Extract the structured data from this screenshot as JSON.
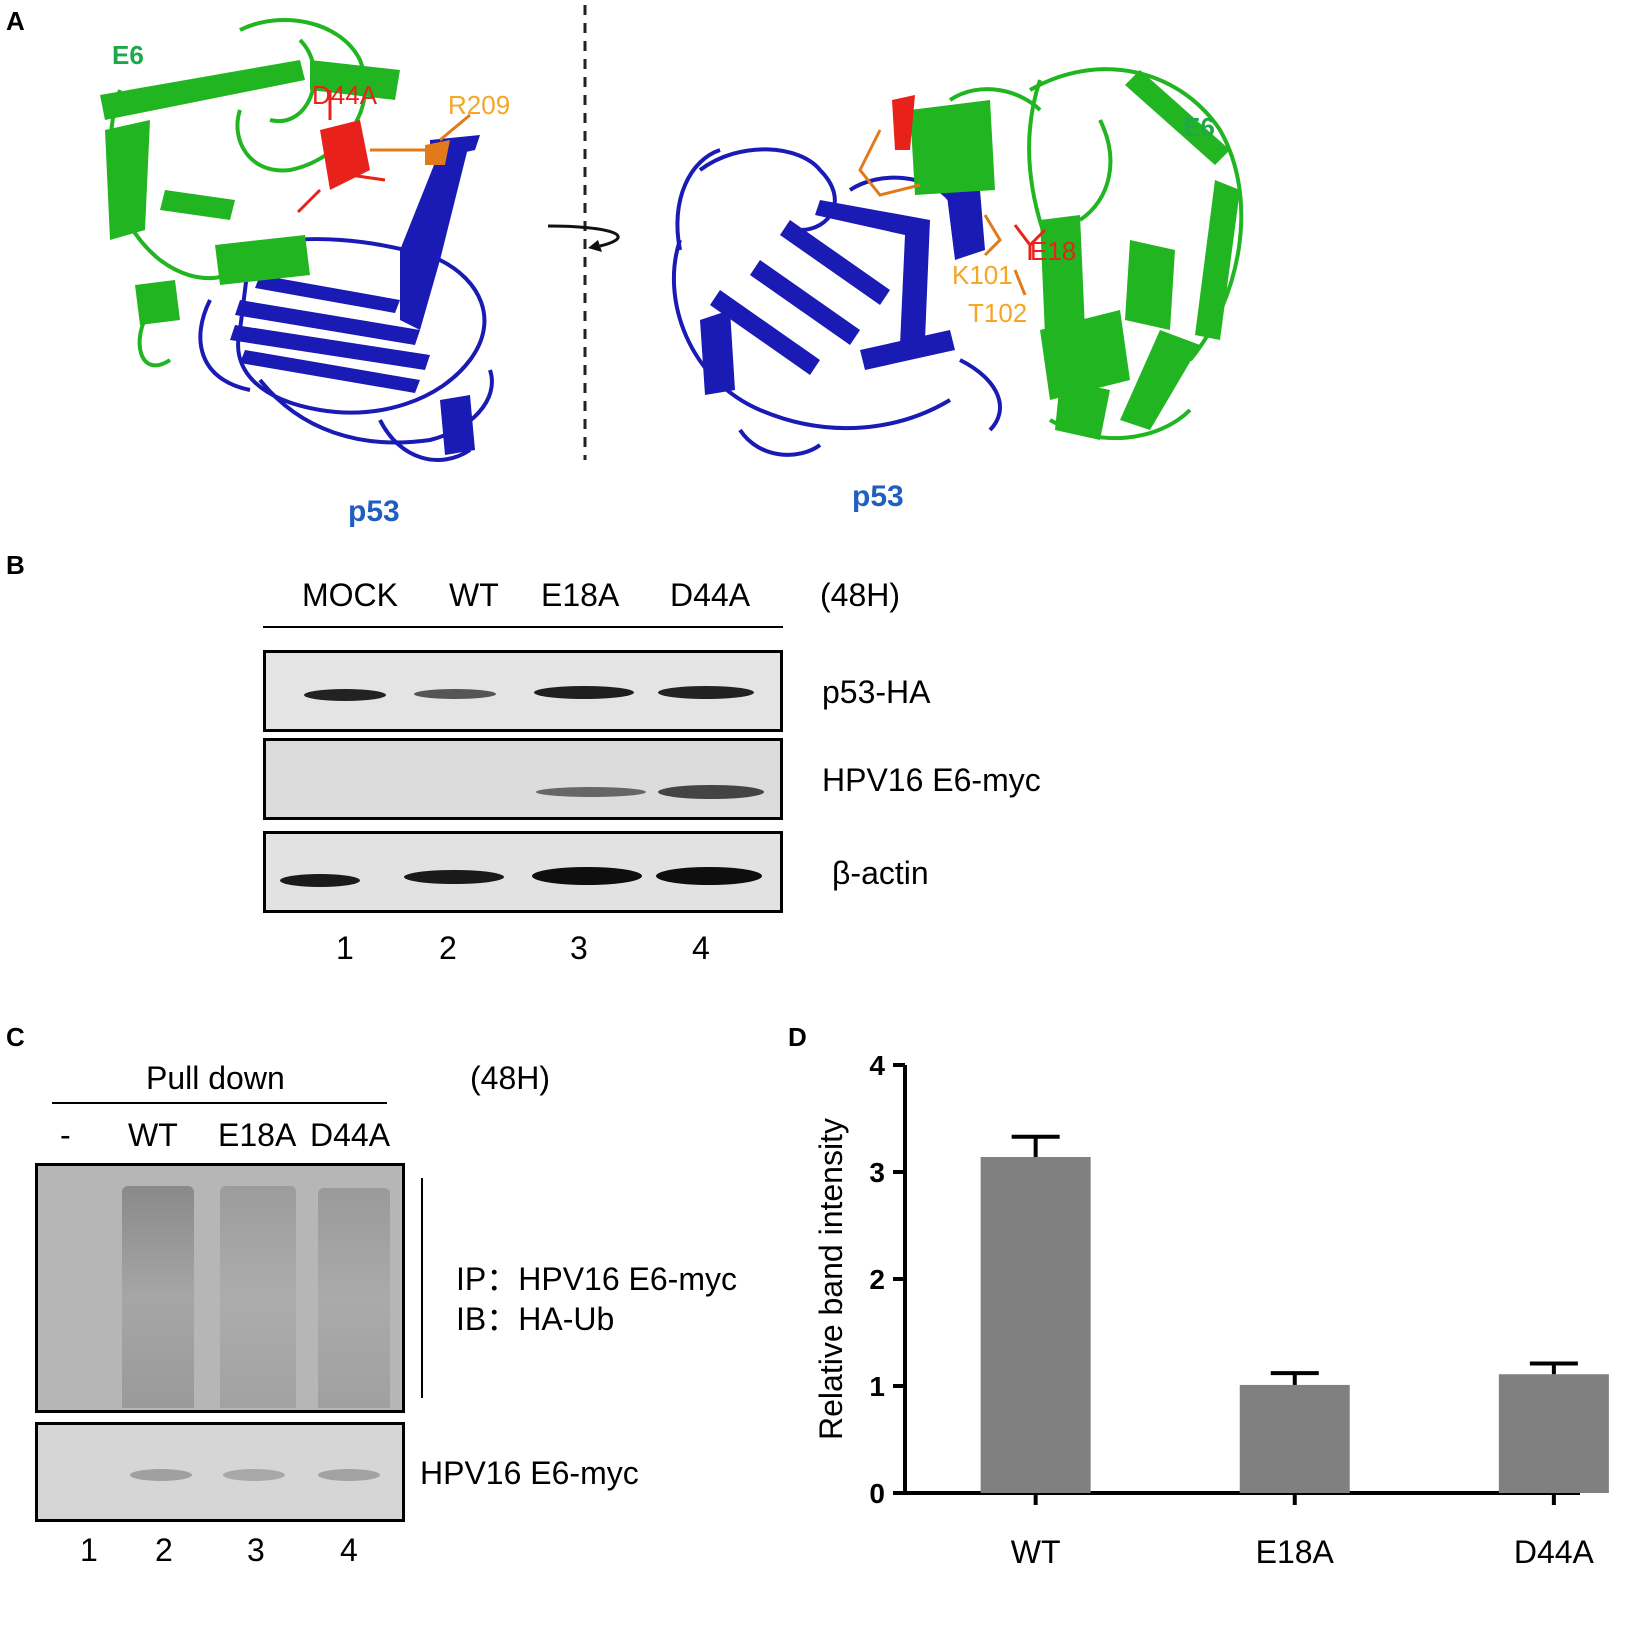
{
  "panelA": {
    "label": "A",
    "left": {
      "e6": "E6",
      "p53": "p53",
      "res1": "D44A",
      "res2": "R209"
    },
    "right": {
      "e6": "E6",
      "p53": "p53",
      "res1": "E18",
      "res2": "K101",
      "res3": "T102"
    },
    "colors": {
      "e6": "#22b522",
      "p53": "#1a1ab4",
      "red": "#e8221a",
      "orange": "#f5a623",
      "e6_text": "#1ea84a",
      "p53_text": "#1f5fc0"
    }
  },
  "panelB": {
    "label": "B",
    "lanes": [
      "MOCK",
      "WT",
      "E18A",
      "D44A"
    ],
    "time": "(48H)",
    "rows": [
      "p53-HA",
      "HPV16 E6-myc",
      "β-actin"
    ],
    "lane_numbers": [
      "1",
      "2",
      "3",
      "4"
    ]
  },
  "panelC": {
    "label": "C",
    "header": "Pull down",
    "time": "(48H)",
    "lanes": [
      "-",
      "WT",
      "E18A",
      "D44A"
    ],
    "ip_line": "IP：HPV16 E6-myc",
    "ib_line": "IB：HA-Ub",
    "bottom_label": "HPV16 E6-myc",
    "lane_numbers": [
      "1",
      "2",
      "3",
      "4"
    ]
  },
  "panelD": {
    "label": "D"
  },
  "chart_data": {
    "type": "bar",
    "categories": [
      "WT",
      "E18A",
      "D44A"
    ],
    "values": [
      3.14,
      1.01,
      1.11
    ],
    "errors": [
      0.19,
      0.11,
      0.1
    ],
    "ylabel": "Relative band intensity",
    "xlabel": "",
    "ylim": [
      0,
      4
    ],
    "yticks": [
      "0",
      "1",
      "2",
      "3",
      "4"
    ],
    "bar_color": "#808080"
  }
}
